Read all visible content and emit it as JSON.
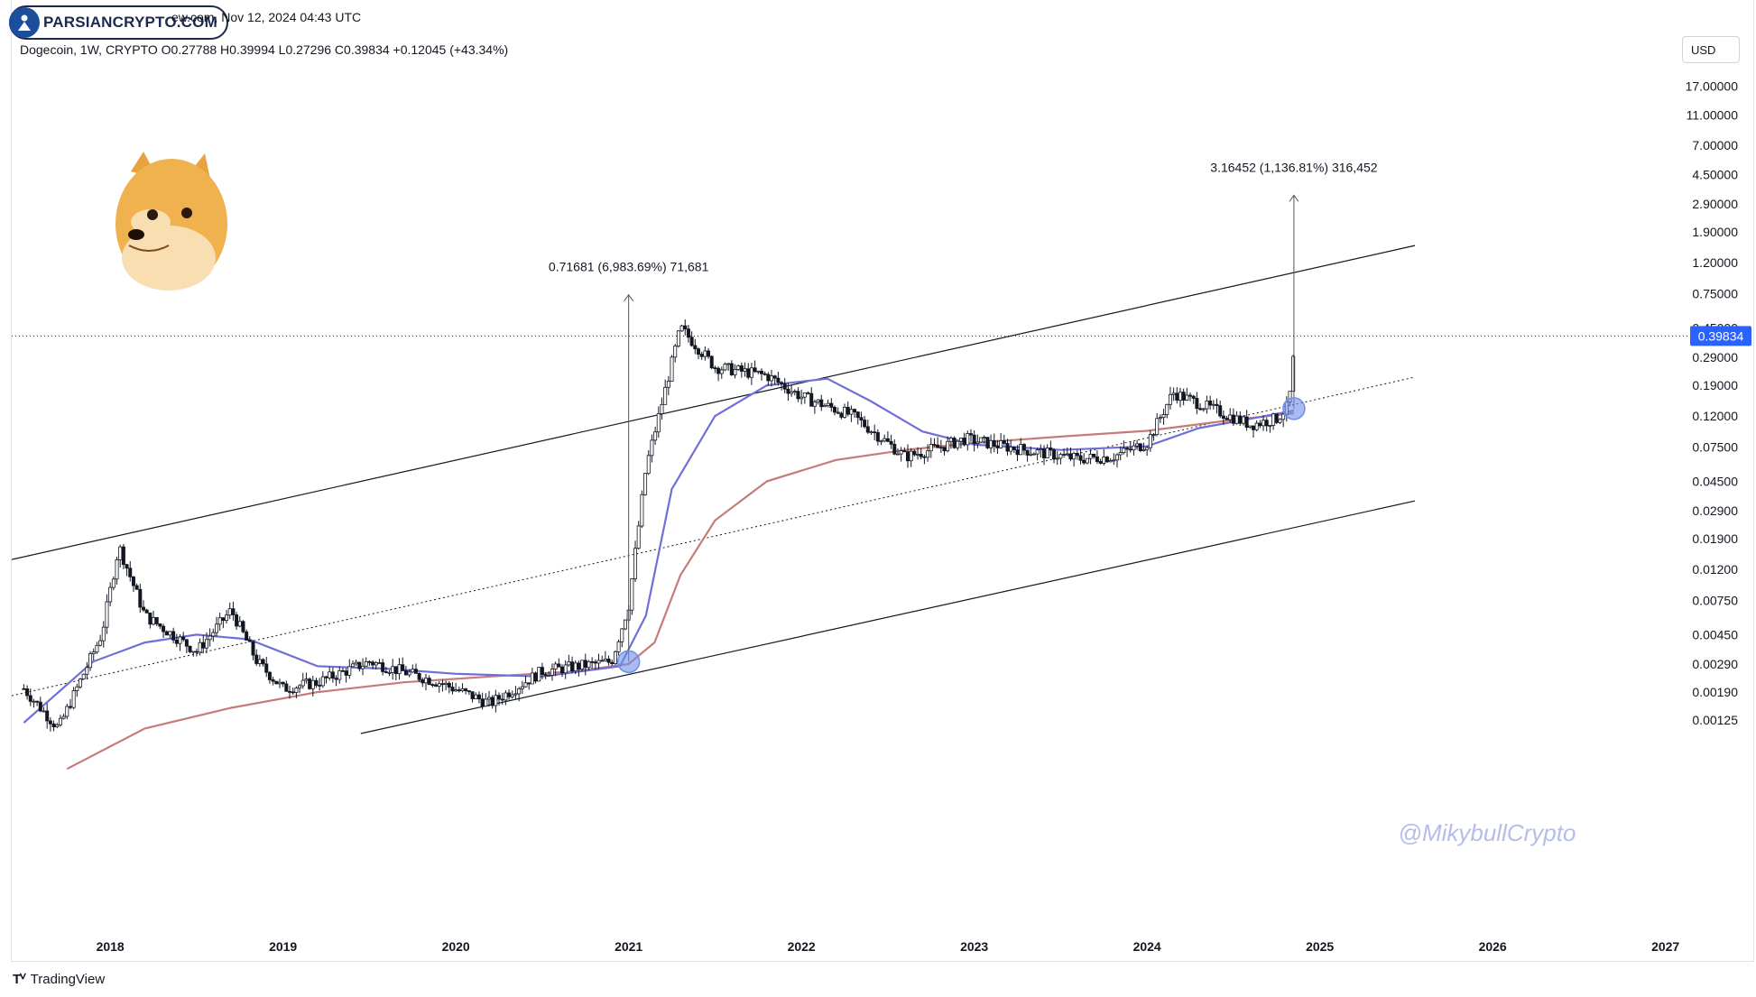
{
  "header": {
    "topline": "ew.com, Nov 12, 2024 04:43 UTC",
    "symbol_line": "Dogecoin, 1W, CRYPTO  O0.27788  H0.39994  L0.27296  C0.39834  +0.12045 (+43.34%)"
  },
  "brand": {
    "label": "PARSIANCRYPTO.COM",
    "icon": "parsiancrypto-logo-icon"
  },
  "currency_button": "USD",
  "footer": {
    "label": "TradingView",
    "icon": "tradingview-logo-icon"
  },
  "watermark": "@MikybullCrypto",
  "colors": {
    "up": "#089981",
    "candle": "#131722",
    "ma_fast": "#6f6fd8",
    "ma_slow": "#c77b79",
    "price_label": "#2962ff",
    "marker": "#6f8fe8"
  },
  "chart_data": {
    "type": "candlestick",
    "title": "Dogecoin, 1W, CRYPTO",
    "scale": "log",
    "ylim": [
      0.001,
      25
    ],
    "x_ticks": [
      "2018",
      "2019",
      "2020",
      "2021",
      "2022",
      "2023",
      "2024",
      "2025",
      "2026",
      "2027"
    ],
    "y_ticks": [
      "17.00000",
      "11.00000",
      "7.00000",
      "4.50000",
      "2.90000",
      "1.90000",
      "1.20000",
      "0.75000",
      "0.45000",
      "0.29000",
      "0.19000",
      "0.12000",
      "0.07500",
      "0.04500",
      "0.02900",
      "0.01900",
      "0.01200",
      "0.00750",
      "0.00450",
      "0.00290",
      "0.00190",
      "0.00125"
    ],
    "current_price": 0.39834,
    "current_price_label": "0.39834",
    "price_path": [
      [
        2017.5,
        0.002
      ],
      [
        2017.7,
        0.0011
      ],
      [
        2017.95,
        0.0045
      ],
      [
        2018.05,
        0.017
      ],
      [
        2018.2,
        0.006
      ],
      [
        2018.5,
        0.0035
      ],
      [
        2018.7,
        0.0065
      ],
      [
        2018.85,
        0.003
      ],
      [
        2019.0,
        0.002
      ],
      [
        2019.2,
        0.0022
      ],
      [
        2019.5,
        0.003
      ],
      [
        2019.9,
        0.0022
      ],
      [
        2020.2,
        0.0016
      ],
      [
        2020.5,
        0.0026
      ],
      [
        2020.9,
        0.003
      ],
      [
        2021.0,
        0.007
      ],
      [
        2021.1,
        0.055
      ],
      [
        2021.3,
        0.45
      ],
      [
        2021.5,
        0.25
      ],
      [
        2021.8,
        0.22
      ],
      [
        2022.0,
        0.16
      ],
      [
        2022.3,
        0.12
      ],
      [
        2022.6,
        0.065
      ],
      [
        2022.8,
        0.075
      ],
      [
        2022.95,
        0.085
      ],
      [
        2023.2,
        0.075
      ],
      [
        2023.6,
        0.063
      ],
      [
        2023.8,
        0.065
      ],
      [
        2024.0,
        0.08
      ],
      [
        2024.15,
        0.17
      ],
      [
        2024.4,
        0.13
      ],
      [
        2024.6,
        0.105
      ],
      [
        2024.75,
        0.115
      ],
      [
        2024.82,
        0.14
      ],
      [
        2024.86,
        0.39834
      ]
    ],
    "ma_fast": [
      [
        2017.5,
        0.0012
      ],
      [
        2017.9,
        0.003
      ],
      [
        2018.2,
        0.004
      ],
      [
        2018.5,
        0.0045
      ],
      [
        2018.8,
        0.0042
      ],
      [
        2019.2,
        0.0028
      ],
      [
        2019.6,
        0.0027
      ],
      [
        2020.0,
        0.0025
      ],
      [
        2020.5,
        0.0024
      ],
      [
        2020.95,
        0.0028
      ],
      [
        2021.1,
        0.006
      ],
      [
        2021.25,
        0.04
      ],
      [
        2021.5,
        0.12
      ],
      [
        2021.8,
        0.19
      ],
      [
        2022.15,
        0.21
      ],
      [
        2022.4,
        0.15
      ],
      [
        2022.7,
        0.095
      ],
      [
        2023.0,
        0.078
      ],
      [
        2023.5,
        0.072
      ],
      [
        2024.0,
        0.076
      ],
      [
        2024.3,
        0.1
      ],
      [
        2024.6,
        0.115
      ],
      [
        2024.85,
        0.13
      ]
    ],
    "ma_slow": [
      [
        2017.75,
        0.0006
      ],
      [
        2018.2,
        0.0011
      ],
      [
        2018.7,
        0.0015
      ],
      [
        2019.2,
        0.0019
      ],
      [
        2019.7,
        0.0022
      ],
      [
        2020.2,
        0.0024
      ],
      [
        2020.7,
        0.0026
      ],
      [
        2021.0,
        0.0029
      ],
      [
        2021.15,
        0.004
      ],
      [
        2021.3,
        0.011
      ],
      [
        2021.5,
        0.025
      ],
      [
        2021.8,
        0.045
      ],
      [
        2022.2,
        0.062
      ],
      [
        2022.6,
        0.072
      ],
      [
        2023.0,
        0.08
      ],
      [
        2023.5,
        0.088
      ],
      [
        2024.0,
        0.096
      ],
      [
        2024.5,
        0.113
      ],
      [
        2024.85,
        0.125
      ]
    ],
    "channel": {
      "upper": [
        [
          2017.43,
          0.0139
        ],
        [
          2025.55,
          1.55
        ]
      ],
      "mid": [
        [
          2017.43,
          0.0018
        ],
        [
          2025.55,
          0.215
        ]
      ],
      "lower": [
        [
          2019.45,
          0.00102
        ],
        [
          2025.55,
          0.0335
        ]
      ]
    },
    "markers": [
      [
        2021.0,
        0.003
      ],
      [
        2024.85,
        0.134
      ]
    ],
    "annotations": [
      {
        "text": "0.71681 (6,983.69%) 71,681",
        "x0": 2021.0,
        "y0": 0.003,
        "y1": 0.74
      },
      {
        "text": "3.16452 (1,136.81%) 316,452",
        "x0": 2024.85,
        "y0": 0.134,
        "y1": 3.3
      }
    ]
  }
}
